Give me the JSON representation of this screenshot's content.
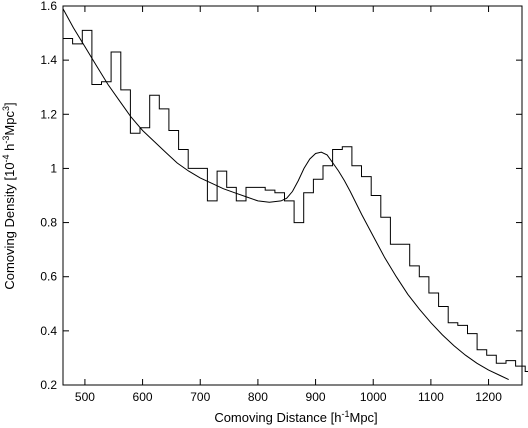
{
  "chart_data": {
    "type": "line",
    "title": "",
    "xlabel": {
      "prefix": "Comoving Distance [h",
      "sup": "-1",
      "suffix": "Mpc]"
    },
    "ylabel": {
      "prefix": "Comoving Density [10",
      "sup1": "-4",
      "mid": " h",
      "sup2": "-3",
      "mid2": "Mpc",
      "sup3": "3",
      "suffix": "]"
    },
    "xlim": [
      462,
      1258
    ],
    "ylim": [
      0.2,
      1.6
    ],
    "xticks": [
      500,
      600,
      700,
      800,
      900,
      1000,
      1100,
      1200
    ],
    "yticks": [
      0.2,
      0.4,
      0.6,
      0.8,
      1.0,
      1.2,
      1.4,
      1.6
    ],
    "xtick_labels": [
      "500",
      "600",
      "700",
      "800",
      "900",
      "1000",
      "1100",
      "1200"
    ],
    "ytick_labels": [
      "0.2",
      "0.4",
      "0.6",
      "0.8",
      "1",
      "1.2",
      "1.4",
      "1.6"
    ],
    "bin_width": 16.7,
    "series": [
      {
        "kind": "histogram",
        "bin_start": 462,
        "values": [
          1.48,
          1.46,
          1.51,
          1.31,
          1.32,
          1.43,
          1.29,
          1.13,
          1.15,
          1.27,
          1.22,
          1.14,
          1.07,
          1.0,
          1.0,
          0.88,
          0.99,
          0.93,
          0.88,
          0.93,
          0.93,
          0.92,
          0.91,
          0.88,
          0.8,
          0.91,
          0.96,
          1.01,
          1.07,
          1.08,
          1.01,
          0.97,
          0.9,
          0.82,
          0.72,
          0.72,
          0.64,
          0.6,
          0.54,
          0.49,
          0.43,
          0.42,
          0.39,
          0.33,
          0.31,
          0.28,
          0.29,
          0.27,
          0.25
        ]
      },
      {
        "kind": "curve",
        "x": [
          462,
          480,
          500,
          520,
          540,
          560,
          580,
          600,
          620,
          640,
          660,
          680,
          700,
          720,
          740,
          760,
          780,
          800,
          820,
          840,
          850,
          860,
          870,
          880,
          890,
          900,
          910,
          920,
          930,
          940,
          950,
          960,
          980,
          1000,
          1020,
          1040,
          1060,
          1080,
          1100,
          1120,
          1140,
          1160,
          1180,
          1200,
          1220,
          1235
        ],
        "y": [
          1.59,
          1.52,
          1.45,
          1.38,
          1.31,
          1.25,
          1.19,
          1.14,
          1.1,
          1.06,
          1.02,
          0.99,
          0.965,
          0.945,
          0.925,
          0.91,
          0.895,
          0.88,
          0.875,
          0.88,
          0.89,
          0.915,
          0.955,
          1.0,
          1.035,
          1.055,
          1.06,
          1.05,
          1.02,
          0.99,
          0.955,
          0.915,
          0.83,
          0.75,
          0.67,
          0.6,
          0.535,
          0.48,
          0.43,
          0.385,
          0.345,
          0.31,
          0.28,
          0.255,
          0.235,
          0.22
        ]
      }
    ]
  }
}
